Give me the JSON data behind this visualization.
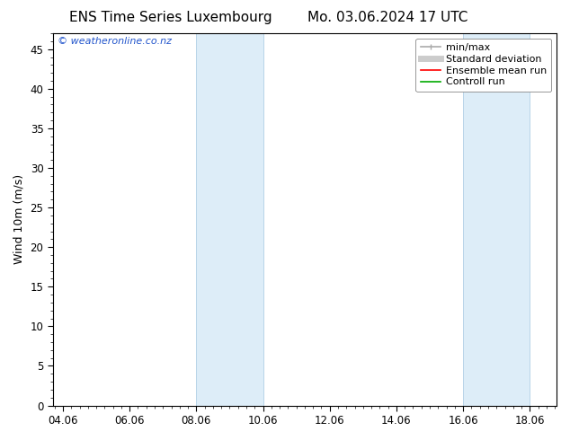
{
  "title_left": "ENS Time Series Luxembourg",
  "title_right": "Mo. 03.06.2024 17 UTC",
  "ylabel": "Wind 10m (m/s)",
  "ylim": [
    0,
    47
  ],
  "yticks": [
    0,
    5,
    10,
    15,
    20,
    25,
    30,
    35,
    40,
    45
  ],
  "xtick_labels": [
    "04.06",
    "06.06",
    "08.06",
    "10.06",
    "12.06",
    "14.06",
    "16.06",
    "18.06"
  ],
  "xtick_positions": [
    0,
    2,
    4,
    6,
    8,
    10,
    12,
    14
  ],
  "xlim": [
    -0.3,
    14.8
  ],
  "shaded_regions": [
    {
      "xmin": 4,
      "xmax": 6,
      "color": "#ddedf8"
    },
    {
      "xmin": 12,
      "xmax": 14,
      "color": "#ddedf8"
    }
  ],
  "shaded_region_lines": [
    {
      "x": 4,
      "color": "#b8d4e8"
    },
    {
      "x": 6,
      "color": "#b8d4e8"
    },
    {
      "x": 12,
      "color": "#b8d4e8"
    },
    {
      "x": 14,
      "color": "#b8d4e8"
    }
  ],
  "legend_entries": [
    {
      "label": "min/max",
      "color": "#aaaaaa",
      "lw": 1.2
    },
    {
      "label": "Standard deviation",
      "color": "#cccccc",
      "lw": 5
    },
    {
      "label": "Ensemble mean run",
      "color": "#ff0000",
      "lw": 1.2
    },
    {
      "label": "Controll run",
      "color": "#00aa00",
      "lw": 1.2
    }
  ],
  "watermark": "© weatheronline.co.nz",
  "watermark_color": "#2255cc",
  "bg_color": "#ffffff",
  "plot_bg_color": "#ffffff",
  "spine_color": "#000000",
  "tick_color": "#000000",
  "title_fontsize": 11,
  "label_fontsize": 9,
  "tick_fontsize": 8.5,
  "watermark_fontsize": 8,
  "legend_fontsize": 8
}
